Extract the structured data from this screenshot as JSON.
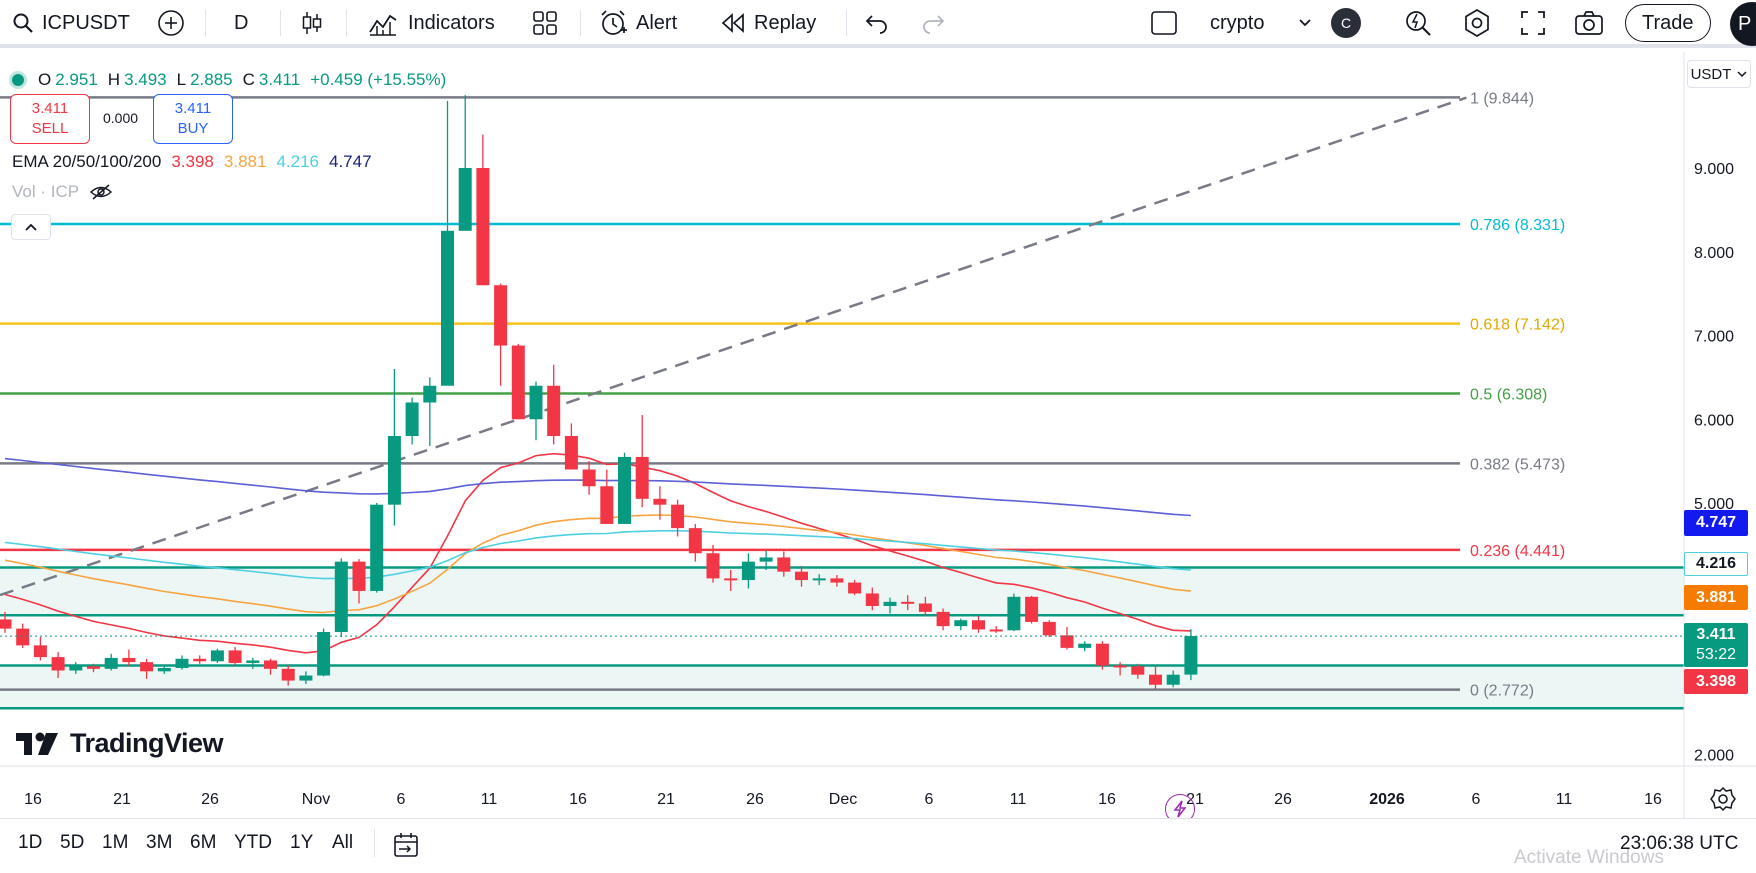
{
  "toolbar": {
    "symbol": "ICPUSDT",
    "interval": "D",
    "indicators_label": "Indicators",
    "alert_label": "Alert",
    "replay_label": "Replay",
    "layout_name": "crypto",
    "layout_avatar": "C",
    "trade_label": "Trade",
    "profile_initial": "P"
  },
  "legend": {
    "open_key": "O",
    "open": "2.951",
    "high_key": "H",
    "high": "3.493",
    "low_key": "L",
    "low": "2.885",
    "close_key": "C",
    "close": "3.411",
    "change": "+0.459 (+15.55%)",
    "sell_price": "3.411",
    "sell_label": "SELL",
    "spread": "0.000",
    "buy_price": "3.411",
    "buy_label": "BUY",
    "ema_title": "EMA 20/50/100/200",
    "ema20": "3.398",
    "ema50": "3.881",
    "ema100": "4.216",
    "ema200": "4.747",
    "vol_label": "Vol · ICP"
  },
  "currency": "USDT",
  "brand": "TradingView",
  "colors": {
    "up": "#089981",
    "down": "#f23645",
    "ema20": "#f23645",
    "ema50": "#f7a440",
    "ema100": "#4dd0e1",
    "ema200": "#5c5fd6",
    "fib_1": "#787b86",
    "fib_786": "#00bcd4",
    "fib_618": "#f7c21b",
    "fib_5": "#43a047",
    "fib_382": "#787b86",
    "fib_236": "#f23645",
    "fib_0": "#787b86",
    "channel": "#089981"
  },
  "chart_data": {
    "type": "candlestick",
    "symbol": "ICPUSDT",
    "interval": "1D",
    "ylim": [
      1.75,
      10.2
    ],
    "y_ticks": [
      "9.000",
      "8.000",
      "7.000",
      "6.000",
      "5.000",
      "2.000"
    ],
    "x_ticks": [
      "16",
      "21",
      "26",
      "Nov",
      "6",
      "11",
      "16",
      "21",
      "26",
      "Dec",
      "6",
      "11",
      "16",
      "21",
      "26",
      "2026",
      "6",
      "11",
      "16"
    ],
    "fib_levels": [
      {
        "label": "1 (9.844)",
        "value": 9.844
      },
      {
        "label": "0.786 (8.331)",
        "value": 8.331
      },
      {
        "label": "0.618 (7.142)",
        "value": 7.142
      },
      {
        "label": "0.5 (6.308)",
        "value": 6.308
      },
      {
        "label": "0.382 (5.473)",
        "value": 5.473
      },
      {
        "label": "0.236 (4.441)",
        "value": 4.441
      },
      {
        "label": "0 (2.772)",
        "value": 2.772
      }
    ],
    "channel_lines": [
      4.23,
      3.66,
      3.06,
      2.55
    ],
    "trend_line": [
      [
        0,
        3.9
      ],
      [
        82,
        9.84
      ]
    ],
    "candles": [
      [
        3.61,
        3.7,
        3.45,
        3.5
      ],
      [
        3.5,
        3.56,
        3.27,
        3.3
      ],
      [
        3.3,
        3.4,
        3.12,
        3.16
      ],
      [
        3.16,
        3.22,
        2.91,
        3.0
      ],
      [
        3.0,
        3.1,
        2.96,
        3.05
      ],
      [
        3.05,
        3.08,
        2.98,
        3.02
      ],
      [
        3.02,
        3.2,
        3.0,
        3.15
      ],
      [
        3.15,
        3.25,
        3.05,
        3.1
      ],
      [
        3.1,
        3.14,
        2.9,
        2.99
      ],
      [
        2.99,
        3.06,
        2.96,
        3.03
      ],
      [
        3.03,
        3.18,
        3.01,
        3.14
      ],
      [
        3.14,
        3.18,
        3.08,
        3.11
      ],
      [
        3.11,
        3.26,
        3.09,
        3.24
      ],
      [
        3.24,
        3.28,
        3.06,
        3.09
      ],
      [
        3.09,
        3.15,
        3.02,
        3.12
      ],
      [
        3.12,
        3.14,
        2.95,
        3.02
      ],
      [
        3.02,
        3.06,
        2.82,
        2.88
      ],
      [
        2.88,
        2.99,
        2.84,
        2.94
      ],
      [
        2.94,
        3.5,
        2.93,
        3.46
      ],
      [
        3.46,
        4.34,
        3.4,
        4.3
      ],
      [
        4.3,
        4.33,
        3.8,
        3.95
      ],
      [
        3.95,
        5.0,
        3.93,
        4.98
      ],
      [
        4.98,
        6.6,
        4.73,
        5.8
      ],
      [
        5.8,
        6.26,
        5.7,
        6.2
      ],
      [
        6.2,
        6.5,
        5.68,
        6.4
      ],
      [
        6.4,
        9.8,
        6.41,
        8.25
      ],
      [
        8.25,
        9.87,
        8.3,
        9.0
      ],
      [
        9.0,
        9.4,
        7.6,
        7.6
      ],
      [
        7.6,
        7.62,
        6.4,
        6.88
      ],
      [
        6.88,
        6.9,
        6.0,
        6.0
      ],
      [
        6.0,
        6.45,
        5.75,
        6.4
      ],
      [
        6.4,
        6.65,
        5.7,
        5.8
      ],
      [
        5.8,
        5.95,
        5.4,
        5.4
      ],
      [
        5.4,
        5.5,
        5.1,
        5.2
      ],
      [
        5.2,
        5.4,
        4.75,
        4.75
      ],
      [
        4.75,
        5.6,
        4.75,
        5.55
      ],
      [
        5.55,
        6.05,
        4.95,
        5.05
      ],
      [
        5.05,
        5.2,
        4.8,
        4.98
      ],
      [
        4.98,
        5.04,
        4.6,
        4.7
      ],
      [
        4.7,
        4.75,
        4.3,
        4.4
      ],
      [
        4.4,
        4.5,
        4.05,
        4.1
      ],
      [
        4.1,
        4.2,
        3.95,
        4.08
      ],
      [
        4.08,
        4.4,
        3.98,
        4.3
      ],
      [
        4.3,
        4.43,
        4.2,
        4.35
      ],
      [
        4.35,
        4.42,
        4.12,
        4.18
      ],
      [
        4.18,
        4.25,
        4.0,
        4.08
      ],
      [
        4.08,
        4.15,
        4.02,
        4.1
      ],
      [
        4.1,
        4.14,
        4.0,
        4.05
      ],
      [
        4.05,
        4.08,
        3.9,
        3.92
      ],
      [
        3.92,
        3.99,
        3.72,
        3.77
      ],
      [
        3.77,
        3.87,
        3.68,
        3.82
      ],
      [
        3.82,
        3.9,
        3.72,
        3.8
      ],
      [
        3.8,
        3.88,
        3.65,
        3.7
      ],
      [
        3.7,
        3.74,
        3.48,
        3.53
      ],
      [
        3.53,
        3.62,
        3.48,
        3.6
      ],
      [
        3.6,
        3.65,
        3.45,
        3.49
      ],
      [
        3.49,
        3.53,
        3.45,
        3.48
      ],
      [
        3.48,
        3.92,
        3.47,
        3.88
      ],
      [
        3.88,
        3.89,
        3.56,
        3.58
      ],
      [
        3.58,
        3.6,
        3.4,
        3.42
      ],
      [
        3.42,
        3.52,
        3.25,
        3.27
      ],
      [
        3.27,
        3.35,
        3.23,
        3.32
      ],
      [
        3.32,
        3.35,
        3.01,
        3.06
      ],
      [
        3.06,
        3.1,
        2.94,
        3.05
      ],
      [
        3.05,
        3.08,
        2.9,
        2.95
      ],
      [
        2.95,
        3.05,
        2.78,
        2.83
      ],
      [
        2.83,
        3.0,
        2.8,
        2.95
      ],
      [
        2.951,
        3.493,
        2.885,
        3.411
      ]
    ],
    "ema20_last": 3.398,
    "ema50_last": 3.881,
    "ema100_last": 4.216,
    "ema200_last": 4.747,
    "last_price": "3.411",
    "countdown": "53:22"
  },
  "price_tags": {
    "ema200": "4.747",
    "ema100": "4.216",
    "ema50": "3.881",
    "last": "3.411",
    "countdown": "53:22",
    "ema20": "3.398"
  },
  "bottom": {
    "timeframes": [
      "1D",
      "5D",
      "1M",
      "3M",
      "6M",
      "YTD",
      "1Y",
      "All"
    ],
    "clock": "23:06:38 UTC",
    "watermark": "Activate Windows"
  }
}
